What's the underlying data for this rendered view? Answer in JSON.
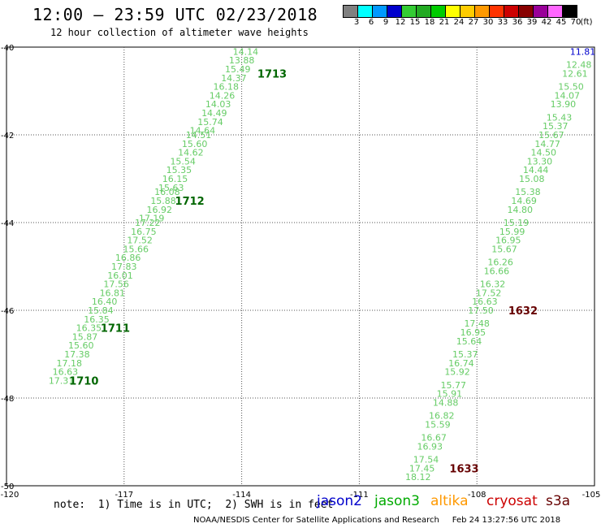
{
  "title": "12:00 — 23:59 UTC 02/23/2018",
  "subtitle": "12 hour collection of altimeter wave heights",
  "colorbar": {
    "units": "(ft)",
    "labels": [
      "3",
      "6",
      "9",
      "12",
      "15",
      "18",
      "21",
      "24",
      "27",
      "30",
      "33",
      "36",
      "39",
      "42",
      "45",
      "70"
    ],
    "colors": [
      "#808080",
      "#00ffff",
      "#0099ff",
      "#0000cc",
      "#33cc33",
      "#22aa22",
      "#00cc00",
      "#ffff00",
      "#ffcc00",
      "#ff9900",
      "#ff3300",
      "#cc0000",
      "#880000",
      "#990099",
      "#ff66ff",
      "#000000"
    ]
  },
  "chart_data": {
    "type": "scatter",
    "xlim": [
      -120,
      -105
    ],
    "ylim": [
      -50,
      -40
    ],
    "x_ticks": [
      "-120",
      "-117",
      "-114",
      "-111",
      "-108",
      "-105"
    ],
    "y_ticks": [
      "-40",
      "-42",
      "-44",
      "-46",
      "-48",
      "-50"
    ],
    "tracks": [
      {
        "color": "#66cc66",
        "points": [
          {
            "lon": -113.9,
            "lat": -40.1,
            "swh": "14.14"
          },
          {
            "lon": -114.0,
            "lat": -40.3,
            "swh": "13.88"
          },
          {
            "lon": -114.1,
            "lat": -40.5,
            "swh": "15.49"
          },
          {
            "lon": -114.2,
            "lat": -40.7,
            "swh": "14.37"
          },
          {
            "lon": -114.4,
            "lat": -40.9,
            "swh": "16.18"
          },
          {
            "lon": -114.5,
            "lat": -41.1,
            "swh": "14.26"
          },
          {
            "lon": -114.6,
            "lat": -41.3,
            "swh": "14.03"
          },
          {
            "lon": -114.7,
            "lat": -41.5,
            "swh": "14.49"
          },
          {
            "lon": -114.8,
            "lat": -41.7,
            "swh": "15.74"
          },
          {
            "lon": -115.0,
            "lat": -41.9,
            "swh": "14.64"
          },
          {
            "lon": -115.1,
            "lat": -42.0,
            "swh": "14.51"
          },
          {
            "lon": -115.2,
            "lat": -42.2,
            "swh": "15.60"
          },
          {
            "lon": -115.3,
            "lat": -42.4,
            "swh": "14.62"
          },
          {
            "lon": -115.5,
            "lat": -42.6,
            "swh": "15.54"
          },
          {
            "lon": -115.6,
            "lat": -42.8,
            "swh": "15.35"
          },
          {
            "lon": -115.7,
            "lat": -43.0,
            "swh": "16.15"
          },
          {
            "lon": -115.8,
            "lat": -43.2,
            "swh": "15.63"
          },
          {
            "lon": -115.9,
            "lat": -43.3,
            "swh": "16.08"
          },
          {
            "lon": -116.0,
            "lat": -43.5,
            "swh": "15.88"
          },
          {
            "lon": -116.1,
            "lat": -43.7,
            "swh": "16.92"
          },
          {
            "lon": -116.3,
            "lat": -43.9,
            "swh": "17.19"
          },
          {
            "lon": -116.4,
            "lat": -44.0,
            "swh": "17.22"
          },
          {
            "lon": -116.5,
            "lat": -44.2,
            "swh": "16.75"
          },
          {
            "lon": -116.6,
            "lat": -44.4,
            "swh": "17.52"
          },
          {
            "lon": -116.7,
            "lat": -44.6,
            "swh": "15.66"
          },
          {
            "lon": -116.9,
            "lat": -44.8,
            "swh": "16.86"
          },
          {
            "lon": -117.0,
            "lat": -45.0,
            "swh": "17.83"
          },
          {
            "lon": -117.1,
            "lat": -45.2,
            "swh": "16.01"
          },
          {
            "lon": -117.2,
            "lat": -45.4,
            "swh": "17.56"
          },
          {
            "lon": -117.3,
            "lat": -45.6,
            "swh": "16.81"
          },
          {
            "lon": -117.5,
            "lat": -45.8,
            "swh": "16.40"
          },
          {
            "lon": -117.6,
            "lat": -46.0,
            "swh": "15.84"
          },
          {
            "lon": -117.7,
            "lat": -46.2,
            "swh": "16.35"
          },
          {
            "lon": -117.9,
            "lat": -46.4,
            "swh": "16.35"
          },
          {
            "lon": -118.0,
            "lat": -46.6,
            "swh": "15.87"
          },
          {
            "lon": -118.1,
            "lat": -46.8,
            "swh": "15.60"
          },
          {
            "lon": -118.2,
            "lat": -47.0,
            "swh": "17.38"
          },
          {
            "lon": -118.4,
            "lat": -47.2,
            "swh": "17.18"
          },
          {
            "lon": -118.5,
            "lat": -47.4,
            "swh": "16.63"
          },
          {
            "lon": -118.6,
            "lat": -47.6,
            "swh": "17.31"
          }
        ]
      },
      {
        "color": "#66cc66",
        "points": [
          {
            "lon": -105.3,
            "lat": -40.1,
            "swh": "11.81",
            "color": "#0000cc"
          },
          {
            "lon": -105.4,
            "lat": -40.4,
            "swh": "12.48"
          },
          {
            "lon": -105.5,
            "lat": -40.6,
            "swh": "12.61"
          },
          {
            "lon": -105.6,
            "lat": -40.9,
            "swh": "15.50"
          },
          {
            "lon": -105.7,
            "lat": -41.1,
            "swh": "14.07"
          },
          {
            "lon": -105.8,
            "lat": -41.3,
            "swh": "13.90"
          },
          {
            "lon": -105.9,
            "lat": -41.6,
            "swh": "15.43"
          },
          {
            "lon": -106.0,
            "lat": -41.8,
            "swh": "15.37"
          },
          {
            "lon": -106.1,
            "lat": -42.0,
            "swh": "15.67"
          },
          {
            "lon": -106.2,
            "lat": -42.2,
            "swh": "14.77"
          },
          {
            "lon": -106.3,
            "lat": -42.4,
            "swh": "14.50"
          },
          {
            "lon": -106.4,
            "lat": -42.6,
            "swh": "13.30"
          },
          {
            "lon": -106.5,
            "lat": -42.8,
            "swh": "14.44"
          },
          {
            "lon": -106.6,
            "lat": -43.0,
            "swh": "15.08"
          },
          {
            "lon": -106.7,
            "lat": -43.3,
            "swh": "15.38"
          },
          {
            "lon": -106.8,
            "lat": -43.5,
            "swh": "14.69"
          },
          {
            "lon": -106.9,
            "lat": -43.7,
            "swh": "14.80"
          },
          {
            "lon": -107.0,
            "lat": -44.0,
            "swh": "15.19"
          },
          {
            "lon": -107.1,
            "lat": -44.2,
            "swh": "15.99"
          },
          {
            "lon": -107.2,
            "lat": -44.4,
            "swh": "16.95"
          },
          {
            "lon": -107.3,
            "lat": -44.6,
            "swh": "15.67"
          },
          {
            "lon": -107.4,
            "lat": -44.9,
            "swh": "16.26"
          },
          {
            "lon": -107.5,
            "lat": -45.1,
            "swh": "16.66"
          },
          {
            "lon": -107.6,
            "lat": -45.4,
            "swh": "16.32"
          },
          {
            "lon": -107.7,
            "lat": -45.6,
            "swh": "17.52"
          },
          {
            "lon": -107.8,
            "lat": -45.8,
            "swh": "16.63"
          },
          {
            "lon": -107.9,
            "lat": -46.0,
            "swh": "17.50"
          },
          {
            "lon": -108.0,
            "lat": -46.3,
            "swh": "17.48"
          },
          {
            "lon": -108.1,
            "lat": -46.5,
            "swh": "16.95"
          },
          {
            "lon": -108.2,
            "lat": -46.7,
            "swh": "15.64"
          },
          {
            "lon": -108.3,
            "lat": -47.0,
            "swh": "15.37"
          },
          {
            "lon": -108.4,
            "lat": -47.2,
            "swh": "16.74"
          },
          {
            "lon": -108.5,
            "lat": -47.4,
            "swh": "15.92"
          },
          {
            "lon": -108.6,
            "lat": -47.7,
            "swh": "15.77"
          },
          {
            "lon": -108.7,
            "lat": -47.9,
            "swh": "15.91"
          },
          {
            "lon": -108.8,
            "lat": -48.1,
            "swh": "14.88"
          },
          {
            "lon": -108.9,
            "lat": -48.4,
            "swh": "16.82"
          },
          {
            "lon": -109.0,
            "lat": -48.6,
            "swh": "15.59"
          },
          {
            "lon": -109.1,
            "lat": -48.9,
            "swh": "16.67"
          },
          {
            "lon": -109.2,
            "lat": -49.1,
            "swh": "16.93"
          },
          {
            "lon": -109.3,
            "lat": -49.4,
            "swh": "17.54"
          },
          {
            "lon": -109.4,
            "lat": -49.6,
            "swh": "17.45"
          },
          {
            "lon": -109.5,
            "lat": -49.8,
            "swh": "18.12"
          }
        ]
      }
    ],
    "time_labels": [
      {
        "lon": -113.6,
        "lat": -40.6,
        "text": "1713",
        "color": "#006600"
      },
      {
        "lon": -115.7,
        "lat": -43.5,
        "text": "1712",
        "color": "#006600"
      },
      {
        "lon": -117.6,
        "lat": -46.4,
        "text": "1711",
        "color": "#006600"
      },
      {
        "lon": -118.4,
        "lat": -47.6,
        "text": "1710",
        "color": "#006600"
      },
      {
        "lon": -107.2,
        "lat": -46.0,
        "text": "1632",
        "color": "#660000"
      },
      {
        "lon": -108.7,
        "lat": -49.6,
        "text": "1633",
        "color": "#660000"
      }
    ]
  },
  "note": "note:  1) Time is in UTC;  2) SWH is in feet",
  "legend": [
    {
      "label": "jason2",
      "color": "#0000cc"
    },
    {
      "label": "jason3",
      "color": "#00aa00"
    },
    {
      "label": "altika",
      "color": "#ff9900"
    },
    {
      "label": "cryosat",
      "color": "#cc0000"
    },
    {
      "label": "s3a",
      "color": "#660000"
    }
  ],
  "credit": "NOAA/NESDIS Center for Satellite Applications and Research     Feb 24 13:27:56 UTC 2018"
}
